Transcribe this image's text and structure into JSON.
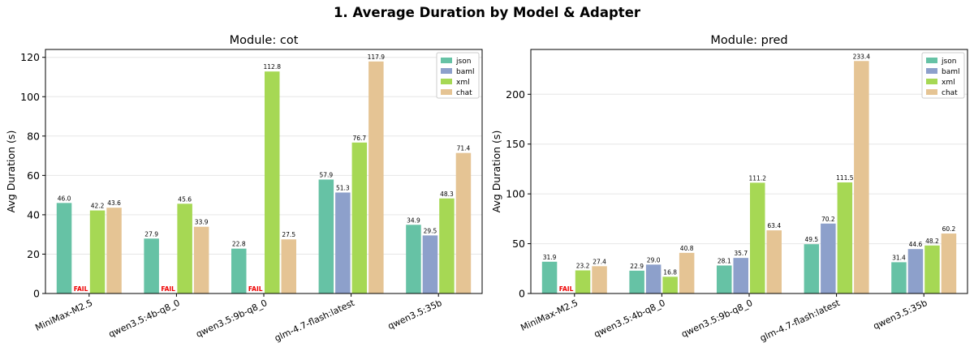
{
  "figure": {
    "title": "1. Average Duration by Model & Adapter"
  },
  "colors": {
    "json": "#66c2a5",
    "baml": "#8da0cb",
    "xml": "#a6d854",
    "chat": "#e5c494",
    "fail": "#ee0000"
  },
  "fail_label": "FAIL",
  "chart_data": [
    {
      "type": "bar",
      "title": "Module: cot",
      "ylabel": "Avg Duration (s)",
      "xlabel": "",
      "categories": [
        "MiniMax-M2.5",
        "qwen3.5:4b-q8_0",
        "qwen3.5:9b-q8_0",
        "glm-4.7-flash:latest",
        "qwen3.5:35b"
      ],
      "ylim": [
        0,
        124
      ],
      "yticks": [
        0,
        20,
        40,
        60,
        80,
        100,
        120
      ],
      "grid": true,
      "legend_position": "top-right",
      "series": [
        {
          "name": "json",
          "values": [
            46.0,
            27.9,
            22.8,
            57.9,
            34.9
          ]
        },
        {
          "name": "baml",
          "values": [
            null,
            null,
            null,
            51.3,
            29.5
          ]
        },
        {
          "name": "xml",
          "values": [
            42.2,
            45.6,
            112.8,
            76.7,
            48.3
          ]
        },
        {
          "name": "chat",
          "values": [
            43.6,
            33.9,
            27.5,
            117.9,
            71.4
          ]
        }
      ],
      "failed": [
        {
          "series": "baml",
          "category": 0
        },
        {
          "series": "baml",
          "category": 1
        },
        {
          "series": "baml",
          "category": 2
        }
      ]
    },
    {
      "type": "bar",
      "title": "Module: pred",
      "ylabel": "Avg Duration (s)",
      "xlabel": "",
      "categories": [
        "MiniMax-M2.5",
        "qwen3.5:4b-q8_0",
        "qwen3.5:9b-q8_0",
        "glm-4.7-flash:latest",
        "qwen3.5:35b"
      ],
      "ylim": [
        0,
        245
      ],
      "yticks": [
        0,
        50,
        100,
        150,
        200
      ],
      "grid": true,
      "legend_position": "top-right",
      "series": [
        {
          "name": "json",
          "values": [
            31.9,
            22.9,
            28.1,
            49.5,
            31.4
          ]
        },
        {
          "name": "baml",
          "values": [
            null,
            29.0,
            35.7,
            70.2,
            44.6
          ]
        },
        {
          "name": "xml",
          "values": [
            23.2,
            16.8,
            111.2,
            111.5,
            48.2
          ]
        },
        {
          "name": "chat",
          "values": [
            27.4,
            40.8,
            63.4,
            233.4,
            60.2
          ]
        }
      ],
      "failed": [
        {
          "series": "baml",
          "category": 0
        }
      ]
    }
  ]
}
